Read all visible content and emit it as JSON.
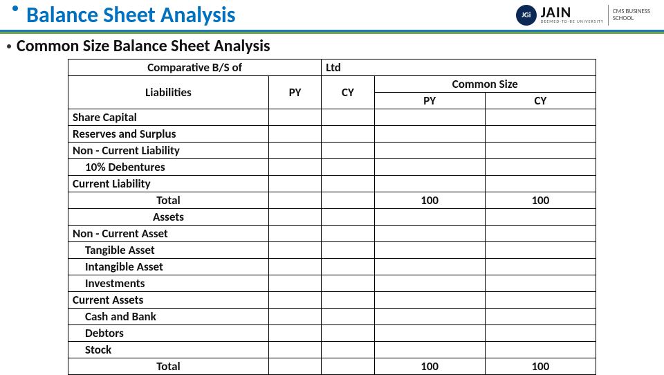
{
  "colors": {
    "title_text": "#0070c0",
    "title_bullet": "#0070c0",
    "underline1": "#1f77b4",
    "underline2": "#6aa84f",
    "background": "#ffffff",
    "border": "#000000",
    "body_text": "#111111"
  },
  "header": {
    "title": "Balance Sheet Analysis",
    "logo": {
      "badge": "JGi",
      "main": "JAIN",
      "sub": "DEEMED-TO-BE UNIVERSITY",
      "right1": "CMS BUSINESS",
      "right2": "SCHOOL"
    }
  },
  "subtitle": "Common Size Balance Sheet Analysis",
  "table": {
    "top_left": "Comparative B/S of",
    "top_right": "Ltd",
    "liab_header": "Liabilities",
    "col_py": "PY",
    "col_cy": "CY",
    "common_size": "Common Size",
    "cs_py": "PY",
    "cs_cy": "CY",
    "rows_liab": [
      {
        "label": "Share Capital",
        "indent": 0
      },
      {
        "label": "Reserves and Surplus",
        "indent": 0
      },
      {
        "label": "Non - Current Liability",
        "indent": 0
      },
      {
        "label": "10% Debentures",
        "indent": 1
      },
      {
        "label": "Current Liability",
        "indent": 0
      }
    ],
    "total_label": "Total",
    "total_cs_py": "100",
    "total_cs_cy": "100",
    "assets_header": "Assets",
    "rows_assets": [
      {
        "label": "Non - Current Asset",
        "indent": 0
      },
      {
        "label": "Tangible Asset",
        "indent": 1
      },
      {
        "label": "Intangible Asset",
        "indent": 1
      },
      {
        "label": "Investments",
        "indent": 1
      },
      {
        "label": "Current Assets",
        "indent": 0
      },
      {
        "label": "Cash and Bank",
        "indent": 1
      },
      {
        "label": "Debtors",
        "indent": 1
      },
      {
        "label": "Stock",
        "indent": 1
      }
    ],
    "total2_cs_py": "100",
    "total2_cs_cy": "100"
  }
}
